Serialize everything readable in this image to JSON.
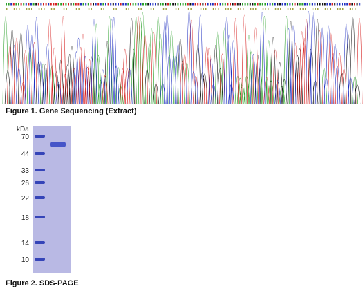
{
  "figure1": {
    "caption": "Figure 1. Gene Sequencing (Extract)"
  },
  "figure2": {
    "unit_label": "kDa",
    "markers": [
      "70",
      "44",
      "33",
      "26",
      "22",
      "18",
      "14",
      "10"
    ],
    "caption": "Figure 2. SDS-PAGE"
  }
}
